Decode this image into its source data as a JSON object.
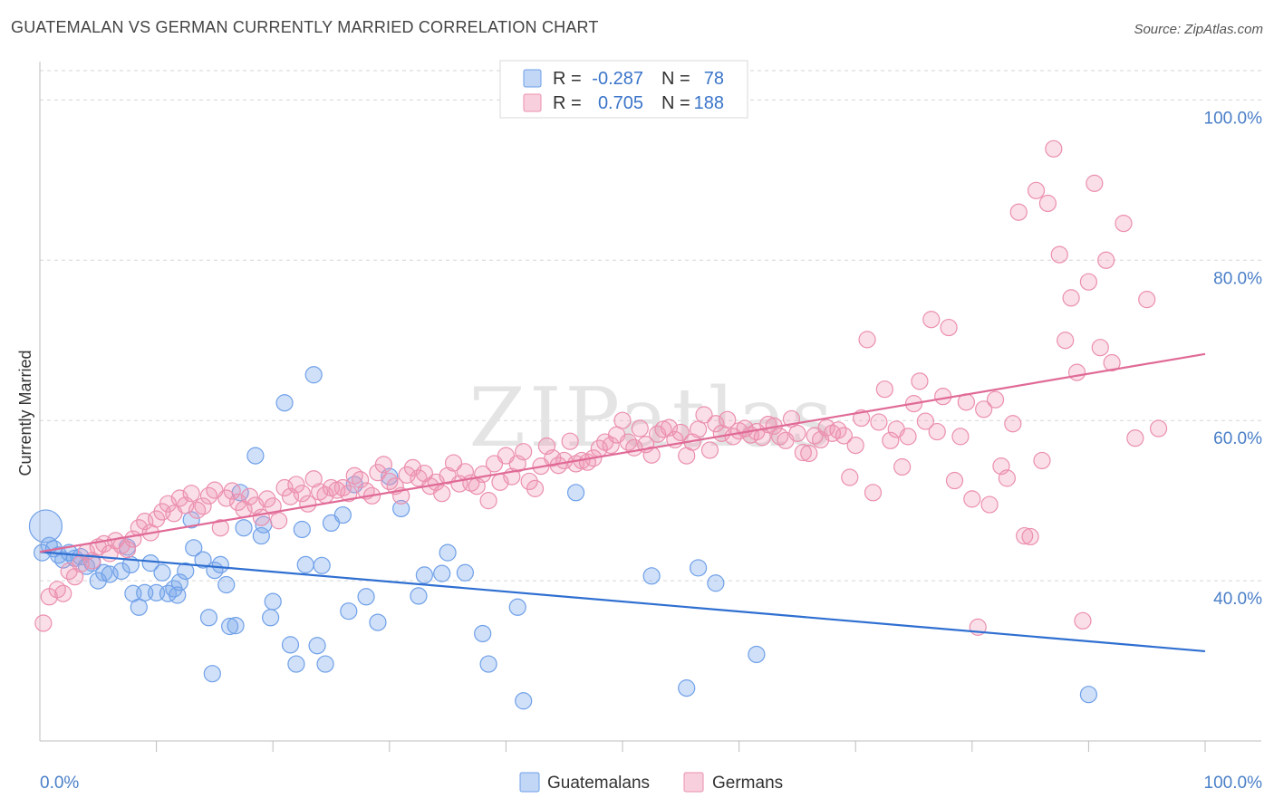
{
  "title": "GUATEMALAN VS GERMAN CURRENTLY MARRIED CORRELATION CHART",
  "source": "Source: ZipAtlas.com",
  "colors": {
    "blue": "#6fa0e8",
    "blue_fill": "rgba(120,165,235,0.35)",
    "blue_line": "#2f6fd1",
    "pink": "#eb8fae",
    "pink_fill": "rgba(240,150,180,0.30)",
    "pink_line": "#e06a97",
    "grid": "#d5d5d5",
    "tick_text": "#4a7fc8"
  },
  "chart_data": {
    "type": "scatter",
    "xlabel": "",
    "ylabel": "Currently Married",
    "xlim": [
      0,
      100
    ],
    "ylim": [
      20,
      104
    ],
    "x_tick_labels": [
      "0.0%",
      "100.0%"
    ],
    "y_ticks": [
      40,
      60,
      80,
      100
    ],
    "y_tick_labels": [
      "40.0%",
      "60.0%",
      "80.0%",
      "100.0%"
    ],
    "watermark": "ZIPatlas",
    "legend": {
      "rows": [
        {
          "series": "Guatemalans",
          "r_label": "R =",
          "r": "-0.287",
          "n_label": "N =",
          "n": "78"
        },
        {
          "series": "Germans",
          "r_label": "R =",
          "r": "0.705",
          "n_label": "N =",
          "n": "188"
        }
      ]
    },
    "series": [
      {
        "name": "Guatemalans",
        "trend": {
          "x": [
            0,
            100
          ],
          "y": [
            43.6,
            31.2
          ]
        },
        "points": [
          [
            0.5,
            46.8
          ],
          [
            0.8,
            44.4
          ],
          [
            1.2,
            44.0
          ],
          [
            1.6,
            43.2
          ],
          [
            2.0,
            42.6
          ],
          [
            2.5,
            43.5
          ],
          [
            3.0,
            42.8
          ],
          [
            3.5,
            43.0
          ],
          [
            4.0,
            41.8
          ],
          [
            4.5,
            42.2
          ],
          [
            5.0,
            40.0
          ],
          [
            5.5,
            41.0
          ],
          [
            6.0,
            40.8
          ],
          [
            7.0,
            41.2
          ],
          [
            7.5,
            44.2
          ],
          [
            7.8,
            42.0
          ],
          [
            8.0,
            38.4
          ],
          [
            8.5,
            36.7
          ],
          [
            9.0,
            38.5
          ],
          [
            9.5,
            42.2
          ],
          [
            10.0,
            38.5
          ],
          [
            10.5,
            41.0
          ],
          [
            11.0,
            38.4
          ],
          [
            11.5,
            39.0
          ],
          [
            11.8,
            38.2
          ],
          [
            12.0,
            39.8
          ],
          [
            12.5,
            41.2
          ],
          [
            13.0,
            47.6
          ],
          [
            13.2,
            44.1
          ],
          [
            14.0,
            42.6
          ],
          [
            14.5,
            35.4
          ],
          [
            14.8,
            28.4
          ],
          [
            15.0,
            41.3
          ],
          [
            15.5,
            42.0
          ],
          [
            16.0,
            39.5
          ],
          [
            16.3,
            34.3
          ],
          [
            16.8,
            34.4
          ],
          [
            17.2,
            51.0
          ],
          [
            17.5,
            46.6
          ],
          [
            18.5,
            55.6
          ],
          [
            19.0,
            45.6
          ],
          [
            19.2,
            47.0
          ],
          [
            20.0,
            37.4
          ],
          [
            19.8,
            35.4
          ],
          [
            21.0,
            62.2
          ],
          [
            21.5,
            32.0
          ],
          [
            22.0,
            29.6
          ],
          [
            22.5,
            46.4
          ],
          [
            22.8,
            42.0
          ],
          [
            23.5,
            65.7
          ],
          [
            23.8,
            31.9
          ],
          [
            24.2,
            41.9
          ],
          [
            24.5,
            29.6
          ],
          [
            25.0,
            47.2
          ],
          [
            26.0,
            48.2
          ],
          [
            26.5,
            36.2
          ],
          [
            27.0,
            52.0
          ],
          [
            28.0,
            38.0
          ],
          [
            29.0,
            34.8
          ],
          [
            30.0,
            53.0
          ],
          [
            31.0,
            49.0
          ],
          [
            32.5,
            38.1
          ],
          [
            33.0,
            40.7
          ],
          [
            34.5,
            40.9
          ],
          [
            35.0,
            43.5
          ],
          [
            36.5,
            41.0
          ],
          [
            38.0,
            33.4
          ],
          [
            38.5,
            29.6
          ],
          [
            41.0,
            36.7
          ],
          [
            41.5,
            25.0
          ],
          [
            46.0,
            51.0
          ],
          [
            52.5,
            40.6
          ],
          [
            55.5,
            26.6
          ],
          [
            56.5,
            41.6
          ],
          [
            58.0,
            39.7
          ],
          [
            61.5,
            30.8
          ],
          [
            90.0,
            25.8
          ],
          [
            0.2,
            43.5
          ]
        ]
      },
      {
        "name": "Germans",
        "trend": {
          "x": [
            0,
            100
          ],
          "y": [
            43.6,
            68.3
          ]
        },
        "points": [
          [
            0.3,
            34.7
          ],
          [
            0.8,
            38.0
          ],
          [
            1.5,
            38.9
          ],
          [
            2.0,
            38.4
          ],
          [
            2.5,
            41.2
          ],
          [
            3.0,
            40.5
          ],
          [
            3.5,
            42.1
          ],
          [
            4.0,
            43.6
          ],
          [
            4.5,
            42.5
          ],
          [
            5.0,
            44.2
          ],
          [
            5.5,
            44.6
          ],
          [
            6.0,
            43.4
          ],
          [
            6.5,
            45.0
          ],
          [
            7.0,
            44.4
          ],
          [
            7.5,
            43.9
          ],
          [
            8.0,
            45.2
          ],
          [
            8.5,
            46.6
          ],
          [
            9.0,
            47.4
          ],
          [
            9.5,
            46.0
          ],
          [
            10.0,
            47.7
          ],
          [
            10.5,
            48.6
          ],
          [
            11.0,
            49.6
          ],
          [
            11.5,
            48.4
          ],
          [
            12.0,
            50.3
          ],
          [
            12.5,
            49.4
          ],
          [
            13.0,
            50.9
          ],
          [
            13.5,
            48.8
          ],
          [
            14.0,
            49.3
          ],
          [
            14.5,
            50.6
          ],
          [
            15.0,
            51.3
          ],
          [
            15.5,
            46.6
          ],
          [
            16.0,
            50.3
          ],
          [
            16.5,
            51.2
          ],
          [
            17.0,
            49.8
          ],
          [
            17.5,
            48.9
          ],
          [
            18.0,
            50.5
          ],
          [
            18.5,
            49.4
          ],
          [
            19.0,
            47.9
          ],
          [
            19.5,
            50.2
          ],
          [
            20.0,
            49.3
          ],
          [
            20.5,
            47.5
          ],
          [
            21.0,
            51.6
          ],
          [
            21.5,
            50.5
          ],
          [
            22.0,
            52.0
          ],
          [
            22.5,
            50.9
          ],
          [
            23.0,
            49.6
          ],
          [
            23.5,
            52.7
          ],
          [
            24.0,
            51.1
          ],
          [
            24.5,
            50.7
          ],
          [
            25.0,
            51.6
          ],
          [
            25.5,
            51.3
          ],
          [
            26.0,
            51.6
          ],
          [
            26.5,
            50.9
          ],
          [
            27.0,
            53.1
          ],
          [
            27.5,
            52.6
          ],
          [
            28.0,
            51.2
          ],
          [
            28.5,
            50.6
          ],
          [
            29.0,
            53.5
          ],
          [
            29.5,
            54.5
          ],
          [
            30.0,
            52.4
          ],
          [
            30.5,
            51.8
          ],
          [
            31.0,
            50.6
          ],
          [
            31.5,
            53.2
          ],
          [
            32.0,
            54.1
          ],
          [
            32.5,
            52.8
          ],
          [
            33.0,
            53.4
          ],
          [
            33.5,
            51.8
          ],
          [
            34.0,
            52.3
          ],
          [
            34.5,
            50.9
          ],
          [
            35.0,
            53.1
          ],
          [
            35.5,
            54.7
          ],
          [
            36.0,
            52.1
          ],
          [
            36.5,
            53.6
          ],
          [
            37.0,
            52.2
          ],
          [
            37.5,
            51.8
          ],
          [
            38.0,
            53.3
          ],
          [
            38.5,
            50.0
          ],
          [
            39.0,
            54.6
          ],
          [
            39.5,
            52.3
          ],
          [
            40.0,
            55.6
          ],
          [
            40.5,
            53.0
          ],
          [
            41.0,
            54.6
          ],
          [
            41.5,
            56.1
          ],
          [
            42.0,
            52.4
          ],
          [
            42.5,
            51.5
          ],
          [
            43.0,
            54.3
          ],
          [
            43.5,
            56.8
          ],
          [
            44.0,
            55.3
          ],
          [
            44.5,
            54.4
          ],
          [
            45.0,
            55.0
          ],
          [
            45.5,
            57.4
          ],
          [
            46.0,
            54.6
          ],
          [
            46.5,
            55.0
          ],
          [
            47.0,
            54.8
          ],
          [
            47.5,
            55.3
          ],
          [
            48.0,
            56.5
          ],
          [
            48.5,
            57.3
          ],
          [
            49.0,
            56.9
          ],
          [
            49.5,
            58.2
          ],
          [
            50.0,
            60.0
          ],
          [
            50.5,
            57.3
          ],
          [
            51.0,
            56.6
          ],
          [
            51.5,
            59.0
          ],
          [
            52.0,
            57.0
          ],
          [
            52.5,
            55.7
          ],
          [
            53.0,
            58.3
          ],
          [
            53.5,
            58.9
          ],
          [
            54.0,
            59.1
          ],
          [
            54.5,
            57.6
          ],
          [
            55.0,
            58.5
          ],
          [
            55.5,
            55.6
          ],
          [
            56.0,
            57.3
          ],
          [
            56.5,
            58.9
          ],
          [
            57.0,
            60.7
          ],
          [
            57.5,
            56.3
          ],
          [
            58.0,
            59.6
          ],
          [
            58.5,
            58.4
          ],
          [
            59.0,
            60.1
          ],
          [
            59.5,
            58.0
          ],
          [
            60.0,
            58.7
          ],
          [
            60.5,
            59.0
          ],
          [
            61.0,
            58.2
          ],
          [
            61.5,
            58.6
          ],
          [
            62.0,
            57.9
          ],
          [
            62.5,
            59.5
          ],
          [
            63.0,
            59.3
          ],
          [
            63.5,
            58.0
          ],
          [
            64.0,
            57.5
          ],
          [
            64.5,
            60.2
          ],
          [
            65.0,
            58.4
          ],
          [
            65.5,
            56.0
          ],
          [
            66.0,
            55.9
          ],
          [
            66.5,
            58.1
          ],
          [
            67.0,
            57.6
          ],
          [
            67.5,
            59.1
          ],
          [
            68.0,
            58.4
          ],
          [
            68.5,
            58.8
          ],
          [
            69.0,
            58.1
          ],
          [
            69.5,
            52.9
          ],
          [
            70.0,
            56.9
          ],
          [
            70.5,
            60.3
          ],
          [
            71.0,
            70.1
          ],
          [
            71.5,
            51.0
          ],
          [
            72.0,
            59.8
          ],
          [
            72.5,
            63.9
          ],
          [
            73.0,
            57.5
          ],
          [
            73.5,
            58.9
          ],
          [
            74.0,
            54.2
          ],
          [
            74.5,
            58.0
          ],
          [
            75.0,
            62.1
          ],
          [
            75.5,
            64.9
          ],
          [
            76.0,
            59.9
          ],
          [
            76.5,
            72.6
          ],
          [
            77.0,
            58.6
          ],
          [
            77.5,
            63.0
          ],
          [
            78.0,
            71.6
          ],
          [
            78.5,
            52.5
          ],
          [
            79.0,
            58.0
          ],
          [
            79.5,
            62.3
          ],
          [
            80.0,
            50.2
          ],
          [
            80.5,
            34.2
          ],
          [
            81.0,
            61.4
          ],
          [
            81.5,
            49.5
          ],
          [
            82.0,
            62.6
          ],
          [
            82.5,
            54.3
          ],
          [
            83.0,
            52.8
          ],
          [
            83.5,
            59.6
          ],
          [
            84.0,
            86.0
          ],
          [
            84.5,
            45.6
          ],
          [
            85.0,
            45.5
          ],
          [
            85.5,
            88.7
          ],
          [
            86.0,
            55.0
          ],
          [
            86.5,
            87.1
          ],
          [
            87.0,
            93.9
          ],
          [
            87.5,
            80.7
          ],
          [
            88.0,
            70.0
          ],
          [
            88.5,
            75.3
          ],
          [
            89.0,
            66.0
          ],
          [
            89.5,
            35.0
          ],
          [
            90.0,
            77.3
          ],
          [
            90.5,
            89.6
          ],
          [
            91.0,
            69.1
          ],
          [
            91.5,
            80.0
          ],
          [
            92.0,
            67.2
          ],
          [
            93.0,
            84.6
          ],
          [
            94.0,
            57.8
          ],
          [
            95.0,
            75.1
          ],
          [
            96.0,
            59.0
          ]
        ]
      }
    ]
  },
  "bottom_legend": [
    "Guatemalans",
    "Germans"
  ]
}
